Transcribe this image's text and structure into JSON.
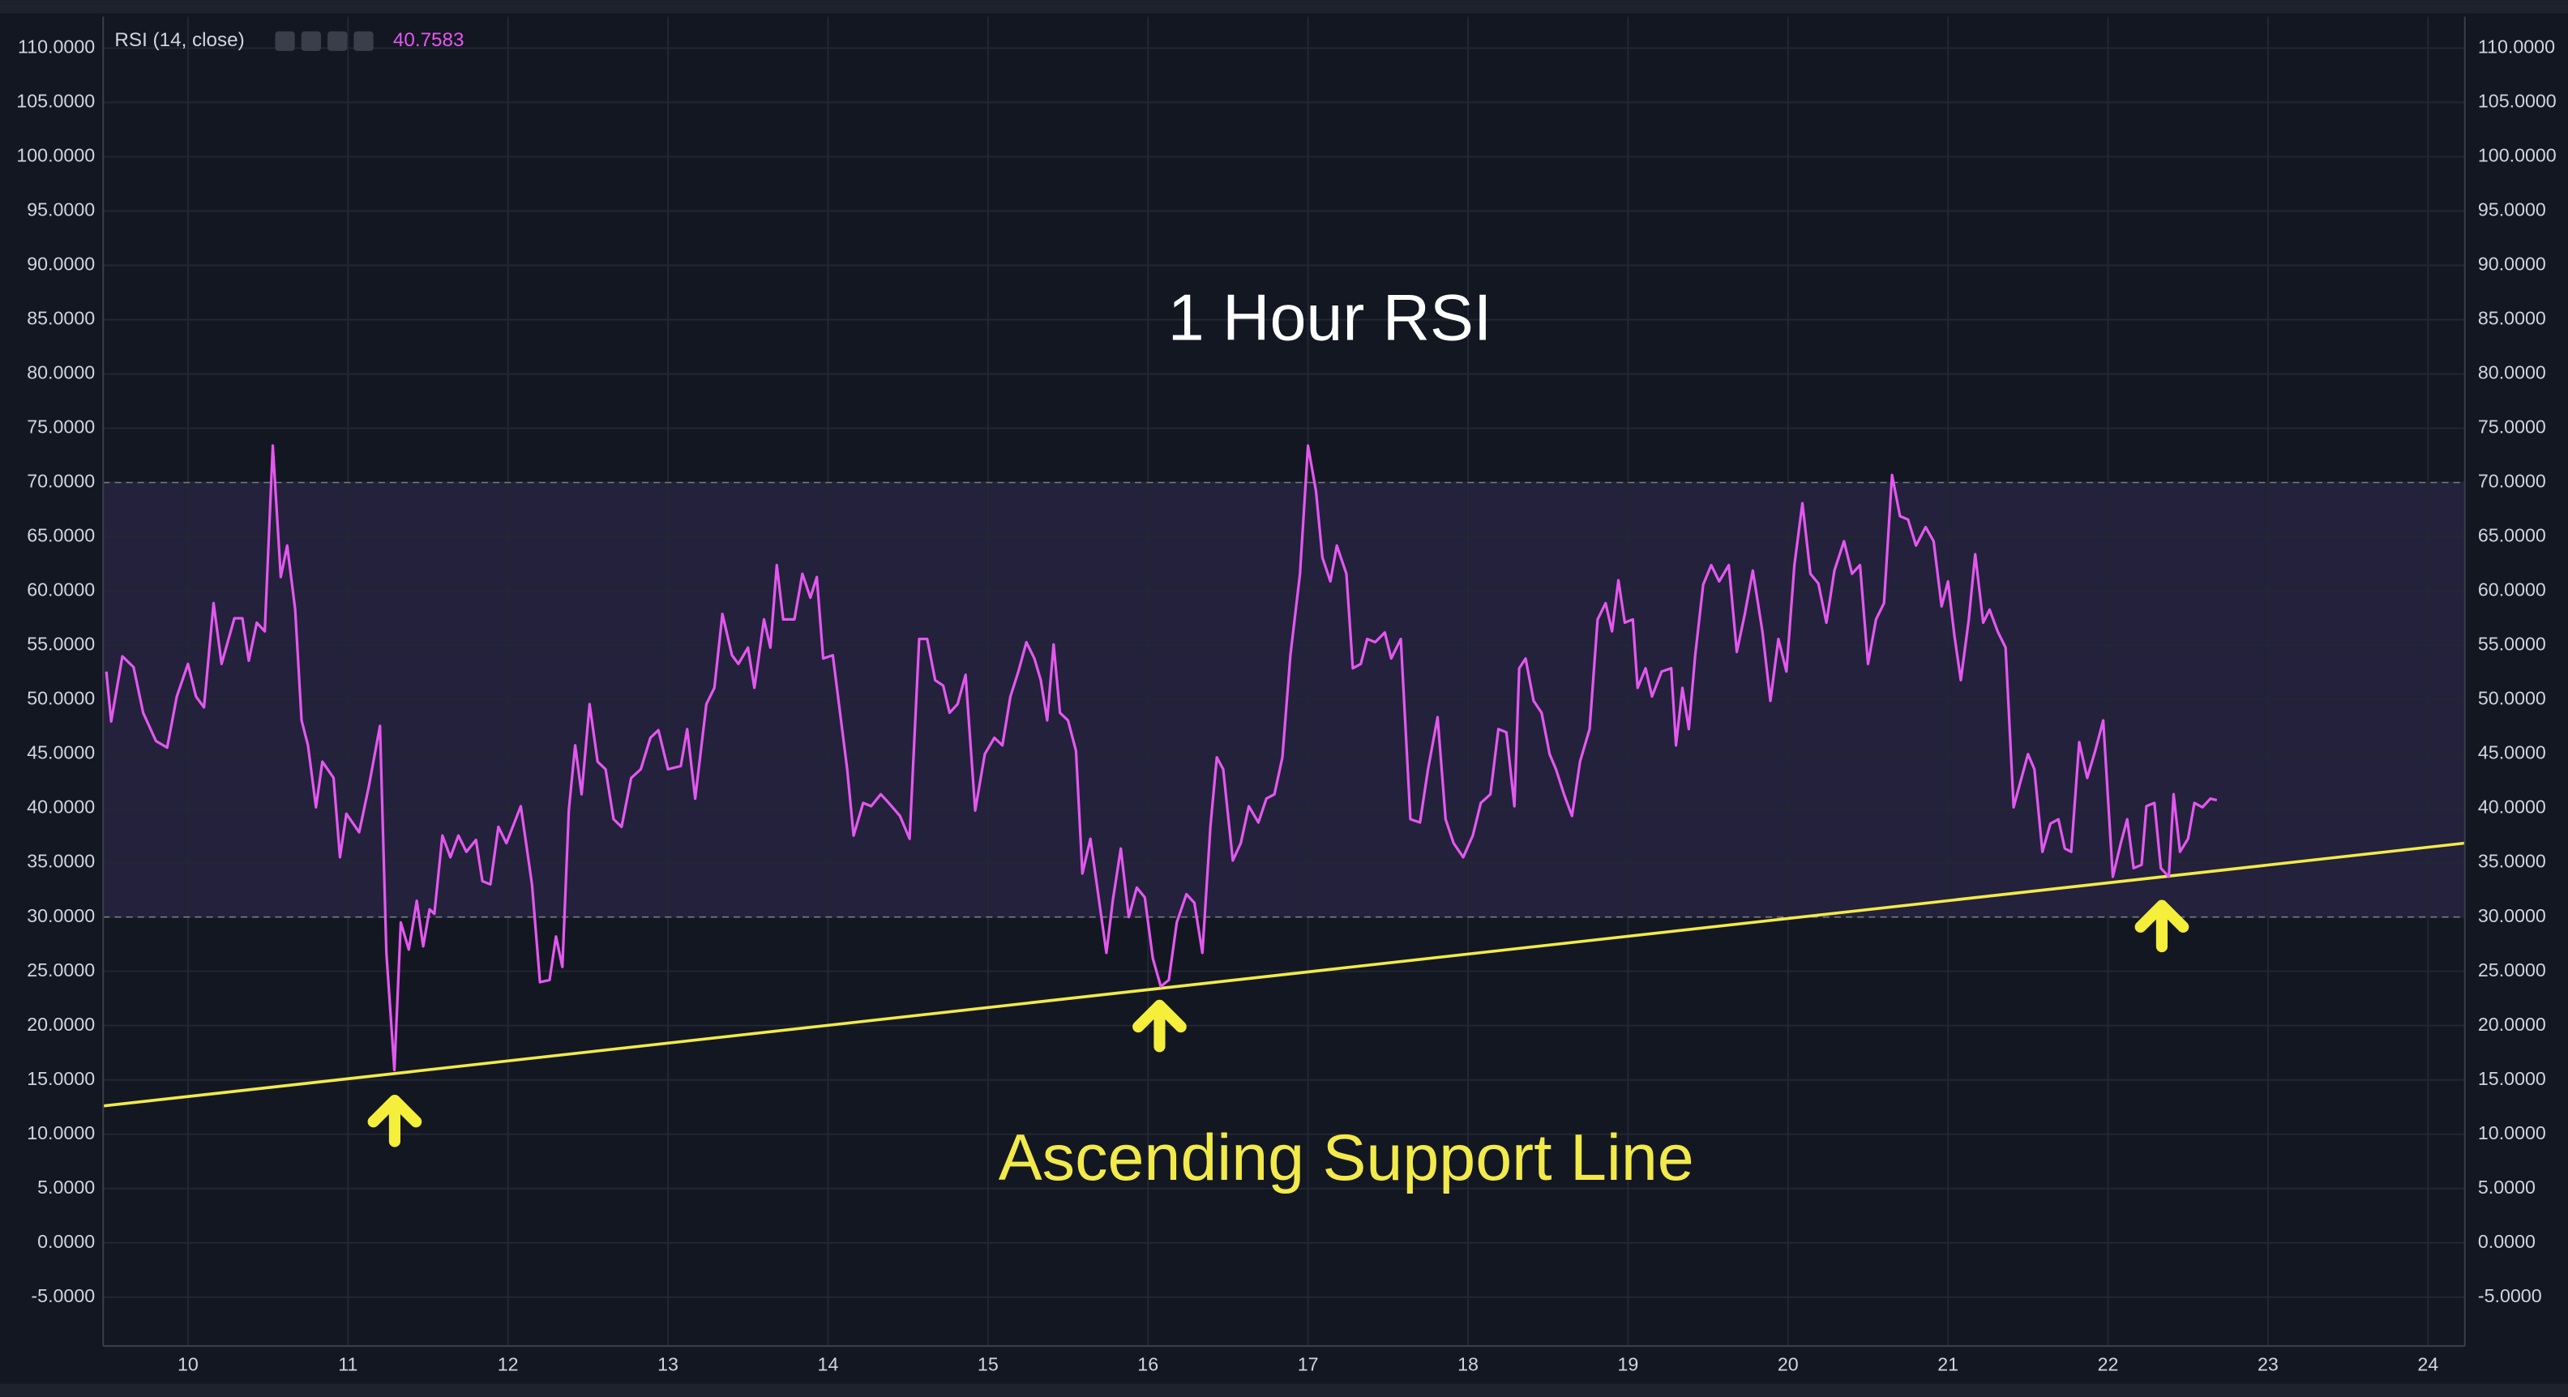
{
  "chart_data": {
    "type": "line",
    "title": "1 Hour RSI",
    "x": [
      9.49,
      9.52,
      9.59,
      9.66,
      9.72,
      9.8,
      9.87,
      9.93,
      10.0,
      10.05,
      10.1,
      10.16,
      10.21,
      10.29,
      10.34,
      10.38,
      10.43,
      10.48,
      10.53,
      10.58,
      10.62,
      10.67,
      10.71,
      10.75,
      10.8,
      10.84,
      10.91,
      10.95,
      10.99,
      11.07,
      11.13,
      11.2,
      11.24,
      11.29,
      11.33,
      11.38,
      11.43,
      11.47,
      11.51,
      11.54,
      11.59,
      11.64,
      11.69,
      11.74,
      11.8,
      11.84,
      11.89,
      11.94,
      11.99,
      12.08,
      12.15,
      12.2,
      12.26,
      12.3,
      12.34,
      12.38,
      12.42,
      12.46,
      12.51,
      12.56,
      12.61,
      12.66,
      12.71,
      12.77,
      12.83,
      12.89,
      12.94,
      13.0,
      13.08,
      13.12,
      13.17,
      13.24,
      13.29,
      13.34,
      13.4,
      13.44,
      13.5,
      13.54,
      13.6,
      13.64,
      13.68,
      13.72,
      13.79,
      13.84,
      13.89,
      13.93,
      13.97,
      14.03,
      14.12,
      14.16,
      14.22,
      14.27,
      14.33,
      14.38,
      14.45,
      14.51,
      14.57,
      14.62,
      14.67,
      14.72,
      14.76,
      14.81,
      14.86,
      14.92,
      14.98,
      15.04,
      15.09,
      15.14,
      15.19,
      15.24,
      15.29,
      15.33,
      15.37,
      15.41,
      15.45,
      15.5,
      15.55,
      15.59,
      15.64,
      15.68,
      15.74,
      15.78,
      15.83,
      15.88,
      15.93,
      15.98,
      16.03,
      16.08,
      16.13,
      16.18,
      16.24,
      16.29,
      16.34,
      16.39,
      16.43,
      16.47,
      16.53,
      16.58,
      16.63,
      16.69,
      16.74,
      16.79,
      16.84,
      16.89,
      16.95,
      17.0,
      17.05,
      17.09,
      17.14,
      17.18,
      17.24,
      17.28,
      17.33,
      17.37,
      17.42,
      17.48,
      17.52,
      17.58,
      17.64,
      17.7,
      17.75,
      17.81,
      17.86,
      17.91,
      17.97,
      18.03,
      18.08,
      18.14,
      18.19,
      18.24,
      18.29,
      18.32,
      18.36,
      18.41,
      18.46,
      18.51,
      18.55,
      18.6,
      18.65,
      18.7,
      18.76,
      18.81,
      18.86,
      18.9,
      18.94,
      18.98,
      19.03,
      19.06,
      19.11,
      19.15,
      19.21,
      19.27,
      19.3,
      19.34,
      19.38,
      19.42,
      19.47,
      19.52,
      19.57,
      19.63,
      19.68,
      19.73,
      19.78,
      19.84,
      19.89,
      19.94,
      19.99,
      20.04,
      20.09,
      20.14,
      20.19,
      20.24,
      20.29,
      20.35,
      20.4,
      20.45,
      20.5,
      20.55,
      20.6,
      20.65,
      20.7,
      20.75,
      20.8,
      20.86,
      20.91,
      20.96,
      21.0,
      21.04,
      21.08,
      21.13,
      21.17,
      21.22,
      21.26,
      21.31,
      21.36,
      21.41,
      21.45,
      21.5,
      21.54,
      21.59,
      21.64,
      21.69,
      21.73,
      21.77,
      21.82,
      21.87,
      21.92,
      21.97,
      22.03,
      22.08,
      22.12,
      22.16,
      22.21,
      22.24,
      22.29,
      22.33,
      22.38,
      22.41,
      22.45,
      22.5,
      22.54,
      22.59,
      22.64,
      22.68
    ],
    "series": [
      {
        "name": "RSI (14, close)",
        "color": "#e457f0",
        "values": [
          52.6,
          48,
          54,
          53,
          48.8,
          46.2,
          45.6,
          50.3,
          53.3,
          50.3,
          49.3,
          58.9,
          53.3,
          57.5,
          57.5,
          53.6,
          57.1,
          56.3,
          73.4,
          61.3,
          64.2,
          58.3,
          48.1,
          45.8,
          40.1,
          44.3,
          42.8,
          35.5,
          39.5,
          37.8,
          42,
          47.6,
          26.7,
          15.9,
          29.5,
          27,
          31.5,
          27.3,
          30.7,
          30.3,
          37.5,
          35.5,
          37.5,
          36,
          37.1,
          33.3,
          33,
          38.3,
          36.8,
          40.2,
          33,
          24,
          24.2,
          28.2,
          25.4,
          39.8,
          45.8,
          41.3,
          49.6,
          44.3,
          43.6,
          39,
          38.3,
          42.8,
          43.6,
          46.5,
          47.2,
          43.6,
          43.9,
          47.3,
          40.9,
          49.6,
          51.1,
          57.9,
          54.1,
          53.3,
          54.8,
          51.1,
          57.4,
          54.8,
          62.4,
          57.4,
          57.4,
          61.6,
          59.4,
          61.3,
          53.8,
          54.1,
          43.6,
          37.5,
          40.5,
          40.2,
          41.3,
          40.5,
          39.3,
          37.2,
          55.6,
          55.6,
          51.8,
          51.3,
          48.8,
          49.6,
          52.3,
          39.8,
          45,
          46.5,
          45.8,
          50.3,
          52.6,
          55.3,
          53.8,
          51.8,
          48.1,
          55.1,
          48.8,
          48.1,
          45.3,
          34,
          37.2,
          33,
          26.7,
          31.5,
          36.3,
          30,
          32.7,
          31.8,
          26.2,
          23.6,
          24.2,
          29.5,
          32.1,
          31.3,
          26.7,
          38.3,
          44.7,
          43.6,
          35.2,
          36.8,
          40.2,
          38.7,
          40.9,
          41.3,
          44.7,
          54.1,
          61.6,
          73.4,
          69.2,
          63.1,
          60.9,
          64.2,
          61.6,
          52.9,
          53.3,
          55.6,
          55.3,
          56.2,
          53.8,
          55.6,
          39,
          38.7,
          43.6,
          48.4,
          39,
          36.8,
          35.5,
          37.5,
          40.5,
          41.3,
          47.3,
          47,
          40.2,
          52.9,
          53.8,
          49.9,
          48.8,
          45,
          43.6,
          41.3,
          39.3,
          44.3,
          47.3,
          57.4,
          58.9,
          56.3,
          61,
          57.1,
          57.4,
          51.1,
          52.9,
          50.3,
          52.6,
          52.9,
          45.8,
          51.1,
          47.3,
          54.1,
          60.6,
          62.4,
          60.9,
          62.4,
          54.4,
          57.9,
          61.9,
          56.3,
          49.9,
          55.6,
          52.6,
          62.4,
          68.1,
          61.6,
          60.7,
          57.1,
          61.9,
          64.6,
          61.6,
          62.4,
          53.3,
          57.4,
          58.9,
          70.7,
          66.9,
          66.6,
          64.2,
          65.9,
          64.6,
          58.6,
          60.9,
          55.9,
          51.8,
          57.4,
          63.4,
          57.1,
          58.3,
          56.3,
          54.8,
          40.1,
          42.3,
          45,
          43.6,
          36,
          38.6,
          39,
          36.3,
          36,
          46.1,
          42.8,
          45.3,
          48.1,
          33.7,
          36.8,
          39,
          34.5,
          34.8,
          40.2,
          40.5,
          34.5,
          33.7,
          41.3,
          36,
          37.2,
          40.5,
          40.1,
          40.9,
          40.7583
        ]
      }
    ],
    "support_line": {
      "name": "Ascending Support Line",
      "color": "#f2ea4a",
      "x": [
        9.47,
        24.23
      ],
      "values": [
        12.6,
        36.8
      ]
    },
    "bands": {
      "upper": 70,
      "lower": 30,
      "fill": "#7e57c2"
    },
    "xlim": [
      9.47,
      24.23
    ],
    "xticks": [
      10,
      11,
      12,
      13,
      14,
      15,
      16,
      17,
      18,
      19,
      20,
      21,
      22,
      23,
      24
    ],
    "ylim": [
      -9.5,
      112.9
    ],
    "yticks": [
      {
        "value": -5,
        "label": "-5.0000"
      },
      {
        "value": 0,
        "label": "0.0000"
      },
      {
        "value": 5,
        "label": "5.0000"
      },
      {
        "value": 10,
        "label": "10.0000"
      },
      {
        "value": 15,
        "label": "15.0000"
      },
      {
        "value": 20,
        "label": "20.0000"
      },
      {
        "value": 25,
        "label": "25.0000"
      },
      {
        "value": 30,
        "label": "30.0000"
      },
      {
        "value": 35,
        "label": "35.0000"
      },
      {
        "value": 40,
        "label": "40.0000"
      },
      {
        "value": 45,
        "label": "45.0000"
      },
      {
        "value": 50,
        "label": "50.0000"
      },
      {
        "value": 55,
        "label": "55.0000"
      },
      {
        "value": 60,
        "label": "60.0000"
      },
      {
        "value": 65,
        "label": "65.0000"
      },
      {
        "value": 70,
        "label": "70.0000"
      },
      {
        "value": 75,
        "label": "75.0000"
      },
      {
        "value": 80,
        "label": "80.0000"
      },
      {
        "value": 85,
        "label": "85.0000"
      },
      {
        "value": 90,
        "label": "90.0000"
      },
      {
        "value": 95,
        "label": "95.0000"
      },
      {
        "value": 100,
        "label": "100.0000"
      },
      {
        "value": 105,
        "label": "105.0000"
      },
      {
        "value": 110,
        "label": "110.0000"
      }
    ],
    "grid": true
  }
}
